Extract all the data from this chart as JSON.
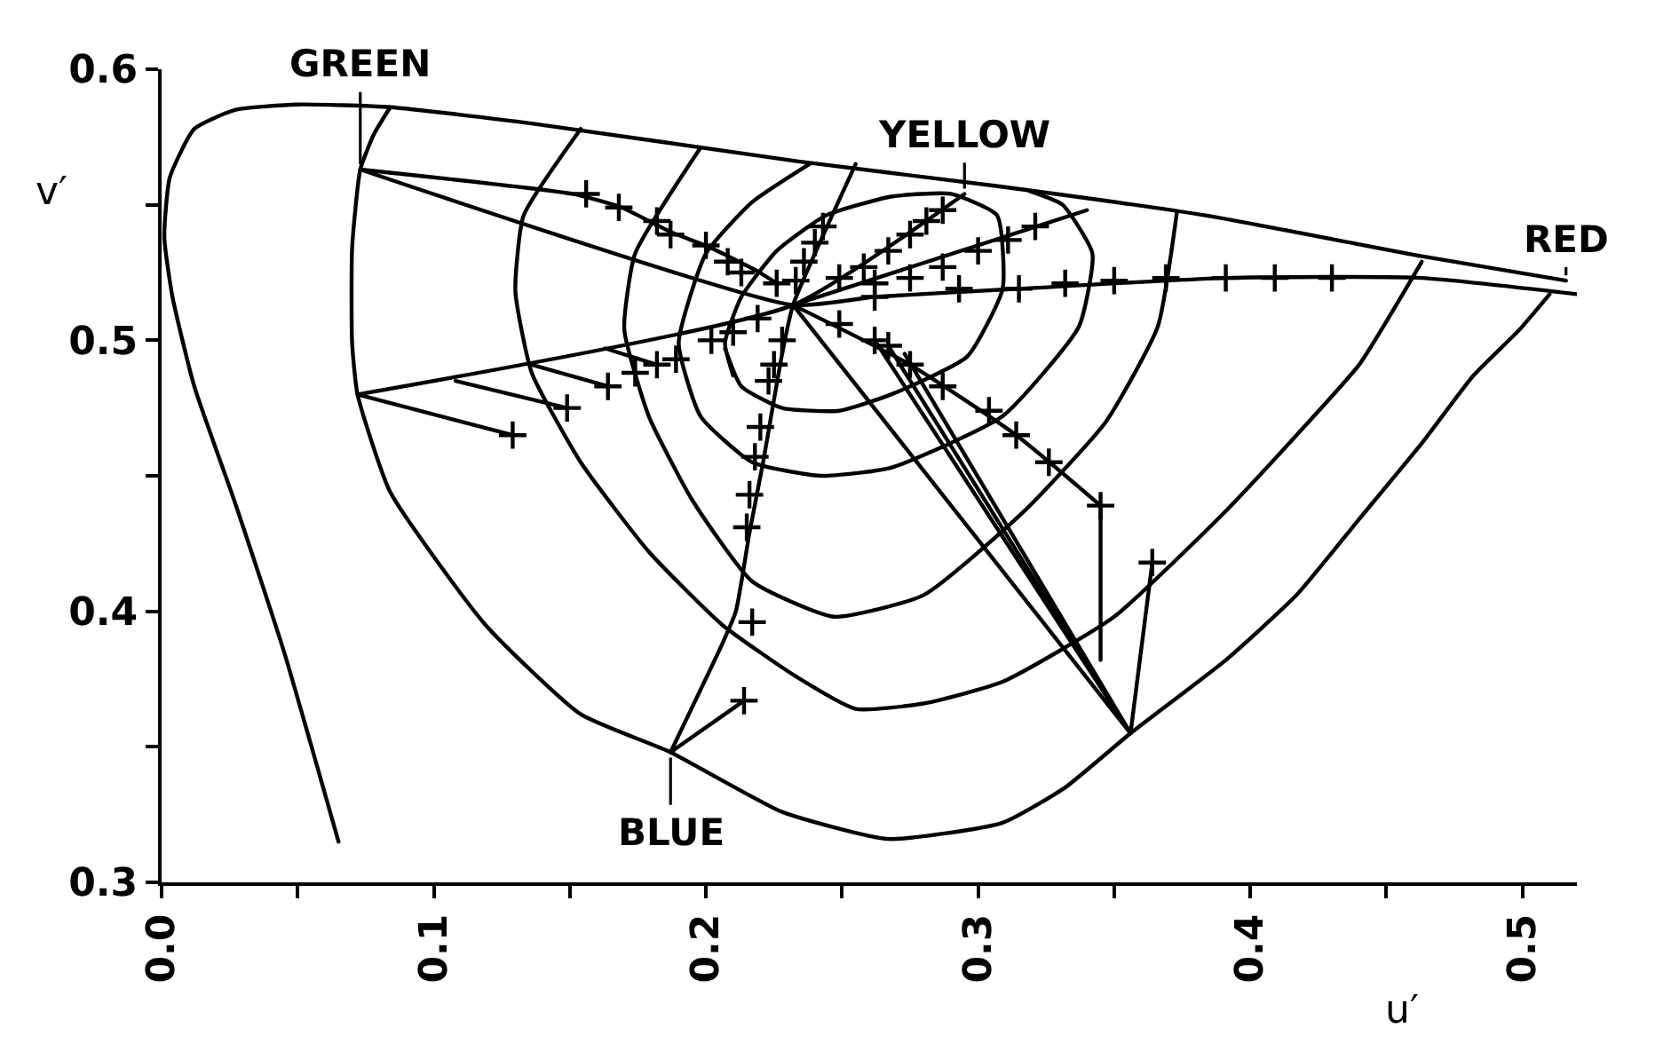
{
  "chart_data": {
    "type": "line",
    "xlabel": "u′",
    "ylabel": "v′",
    "xlim": [
      0,
      0.52
    ],
    "ylim": [
      0.3,
      0.6
    ],
    "xticks": [
      {
        "value": 0,
        "label": "0.0"
      },
      {
        "value": 0.05,
        "label": null
      },
      0.1,
      {
        "value": 0.15,
        "label": null
      },
      0.2,
      {
        "value": 0.25,
        "label": null
      },
      0.3,
      {
        "value": 0.35,
        "label": null
      },
      0.4,
      {
        "value": 0.45,
        "label": null
      },
      0.5
    ],
    "yticks": [
      0.3,
      {
        "value": 0.35,
        "label": null
      },
      0.4,
      {
        "value": 0.45,
        "label": null
      },
      0.5,
      {
        "value": 0.55,
        "label": null
      },
      0.6
    ],
    "grid": false,
    "marker": "none",
    "line_style": "solid",
    "annotations": [
      {
        "text": "GREEN",
        "x": 0.073,
        "y": 0.563
      },
      {
        "text": "YELLOW",
        "x": 0.295,
        "y": 0.554
      },
      {
        "text": "RED",
        "x": 0.516,
        "y": 0.522
      },
      {
        "text": "BLUE",
        "x": 0.187,
        "y": 0.348
      }
    ],
    "series": [
      {
        "color": "#000000",
        "x": [
          0.065,
          0.045,
          0.027,
          0.012,
          0.004,
          0.001,
          0.003,
          0.012,
          0.027,
          0.05,
          0.084,
          0.136,
          0.234,
          0.306,
          0.384,
          0.463,
          0.516
        ],
        "values": [
          0.315,
          0.385,
          0.44,
          0.483,
          0.516,
          0.538,
          0.56,
          0.578,
          0.585,
          0.587,
          0.586,
          0.58,
          0.566,
          0.557,
          0.546,
          0.531,
          0.522
        ]
      },
      {
        "color": "#000000",
        "x": [
          0.084,
          0.078,
          0.073,
          0.07,
          0.07,
          0.072,
          0.084,
          0.119,
          0.154,
          0.187,
          0.228,
          0.267,
          0.309,
          0.332,
          0.356,
          0.391,
          0.417,
          0.44,
          0.463,
          0.482,
          0.499,
          0.51
        ],
        "values": [
          0.586,
          0.576,
          0.563,
          0.534,
          0.499,
          0.48,
          0.444,
          0.395,
          0.362,
          0.348,
          0.326,
          0.316,
          0.322,
          0.335,
          0.355,
          0.382,
          0.406,
          0.434,
          0.462,
          0.487,
          0.504,
          0.517
        ]
      },
      {
        "color": "#000000",
        "x": [
          0.154,
          0.133,
          0.13,
          0.136,
          0.154,
          0.179,
          0.206,
          0.233,
          0.255,
          0.28,
          0.309,
          0.35,
          0.391,
          0.417,
          0.44,
          0.463
        ],
        "values": [
          0.578,
          0.546,
          0.518,
          0.488,
          0.455,
          0.422,
          0.395,
          0.376,
          0.364,
          0.366,
          0.374,
          0.398,
          0.437,
          0.465,
          0.491,
          0.529
        ]
      },
      {
        "color": "#000000",
        "x": [
          0.198,
          0.174,
          0.17,
          0.179,
          0.195,
          0.217,
          0.247,
          0.28,
          0.317,
          0.347,
          0.366,
          0.373
        ],
        "values": [
          0.571,
          0.532,
          0.504,
          0.472,
          0.441,
          0.411,
          0.398,
          0.406,
          0.437,
          0.47,
          0.505,
          0.547
        ]
      },
      {
        "color": "#000000",
        "x": [
          0.238,
          0.217,
          0.2,
          0.19,
          0.198,
          0.217,
          0.242,
          0.268,
          0.309,
          0.337,
          0.342,
          0.331,
          0.319
        ],
        "values": [
          0.565,
          0.551,
          0.532,
          0.499,
          0.472,
          0.455,
          0.45,
          0.453,
          0.472,
          0.505,
          0.532,
          0.55,
          0.555
        ]
      },
      {
        "color": "#000000",
        "x": [
          0.207,
          0.213,
          0.228,
          0.249,
          0.268,
          0.296,
          0.309,
          0.307,
          0.29,
          0.268,
          0.244,
          0.226,
          0.213,
          0.207,
          0.21
        ],
        "values": [
          0.497,
          0.483,
          0.475,
          0.474,
          0.48,
          0.494,
          0.519,
          0.546,
          0.554,
          0.553,
          0.546,
          0.533,
          0.516,
          0.499,
          0.487
        ]
      },
      {
        "color": "#000000",
        "x": [
          0.073,
          0.232,
          0.262,
          0.315,
          0.391,
          0.463,
          0.52
        ],
        "values": [
          0.563,
          0.513,
          0.516,
          0.519,
          0.523,
          0.523,
          0.517
        ]
      },
      {
        "color": "#000000",
        "x": [
          0.072,
          0.232,
          0.295
        ],
        "values": [
          0.48,
          0.513,
          0.554
        ]
      },
      {
        "color": "#000000",
        "x": [
          0.255,
          0.232,
          0.228,
          0.221,
          0.216,
          0.211,
          0.206,
          0.187
        ],
        "values": [
          0.565,
          0.513,
          0.495,
          0.455,
          0.429,
          0.4,
          0.388,
          0.348
        ]
      },
      {
        "color": "#000000",
        "x": [
          0.232,
          0.34
        ],
        "values": [
          0.513,
          0.548
        ]
      },
      {
        "color": "#000000",
        "x": [
          0.073,
          0.151,
          0.169,
          0.187,
          0.202,
          0.218,
          0.226
        ],
        "values": [
          0.563,
          0.554,
          0.549,
          0.54,
          0.534,
          0.526,
          0.521
        ]
      },
      {
        "color": "#000000",
        "x": [
          0.232,
          0.356
        ],
        "values": [
          0.513,
          0.355
        ]
      },
      {
        "color": "#000000",
        "x": [
          0.232,
          0.275,
          0.314,
          0.345
        ],
        "values": [
          0.513,
          0.491,
          0.465,
          0.439
        ]
      },
      {
        "color": "#000000",
        "x": [
          0.262,
          0.356
        ],
        "values": [
          0.5,
          0.355
        ]
      },
      {
        "color": "#000000",
        "x": [
          0.267,
          0.356
        ],
        "values": [
          0.498,
          0.355
        ]
      },
      {
        "color": "#000000",
        "x": [
          0.273,
          0.356
        ],
        "values": [
          0.495,
          0.355
        ]
      },
      {
        "color": "#000000",
        "x": [
          0.345,
          0.345
        ],
        "values": [
          0.439,
          0.382
        ]
      },
      {
        "color": "#000000",
        "x": [
          0.364,
          0.356
        ],
        "values": [
          0.418,
          0.355
        ]
      },
      {
        "color": "#000000",
        "x": [
          0.072,
          0.129
        ],
        "values": [
          0.48,
          0.465
        ]
      },
      {
        "color": "#000000",
        "x": [
          0.108,
          0.149
        ],
        "values": [
          0.485,
          0.475
        ]
      },
      {
        "color": "#000000",
        "x": [
          0.136,
          0.164
        ],
        "values": [
          0.491,
          0.483
        ]
      },
      {
        "color": "#000000",
        "x": [
          0.163,
          0.182
        ],
        "values": [
          0.497,
          0.491
        ]
      },
      {
        "color": "#000000",
        "x": [
          0.187,
          0.214
        ],
        "values": [
          0.348,
          0.367
        ]
      },
      {
        "type": "scatter",
        "marker": "cross",
        "color": "#000000",
        "x": [
          0.156,
          0.168,
          0.182,
          0.187,
          0.2,
          0.208,
          0.213,
          0.226,
          0.243,
          0.24,
          0.236,
          0.233,
          0.249,
          0.258,
          0.267,
          0.275,
          0.281,
          0.287,
          0.262,
          0.275,
          0.287,
          0.3,
          0.311,
          0.321,
          0.262,
          0.293,
          0.315,
          0.332,
          0.35,
          0.369,
          0.391,
          0.409,
          0.43,
          0.219,
          0.21,
          0.202,
          0.189,
          0.182,
          0.174,
          0.164,
          0.149,
          0.129,
          0.228,
          0.225,
          0.223,
          0.22,
          0.218,
          0.216,
          0.215,
          0.217,
          0.214,
          0.249,
          0.262,
          0.267,
          0.275,
          0.287,
          0.304,
          0.314,
          0.326,
          0.345,
          0.364
        ],
        "values": [
          0.554,
          0.549,
          0.544,
          0.539,
          0.535,
          0.529,
          0.525,
          0.521,
          0.542,
          0.536,
          0.529,
          0.522,
          0.523,
          0.527,
          0.533,
          0.539,
          0.544,
          0.548,
          0.521,
          0.523,
          0.527,
          0.533,
          0.537,
          0.542,
          0.516,
          0.519,
          0.519,
          0.521,
          0.522,
          0.523,
          0.523,
          0.523,
          0.523,
          0.508,
          0.503,
          0.5,
          0.493,
          0.491,
          0.488,
          0.483,
          0.475,
          0.465,
          0.5,
          0.491,
          0.485,
          0.468,
          0.457,
          0.443,
          0.431,
          0.396,
          0.367,
          0.506,
          0.5,
          0.498,
          0.491,
          0.483,
          0.474,
          0.465,
          0.455,
          0.439,
          0.418
        ]
      }
    ]
  }
}
